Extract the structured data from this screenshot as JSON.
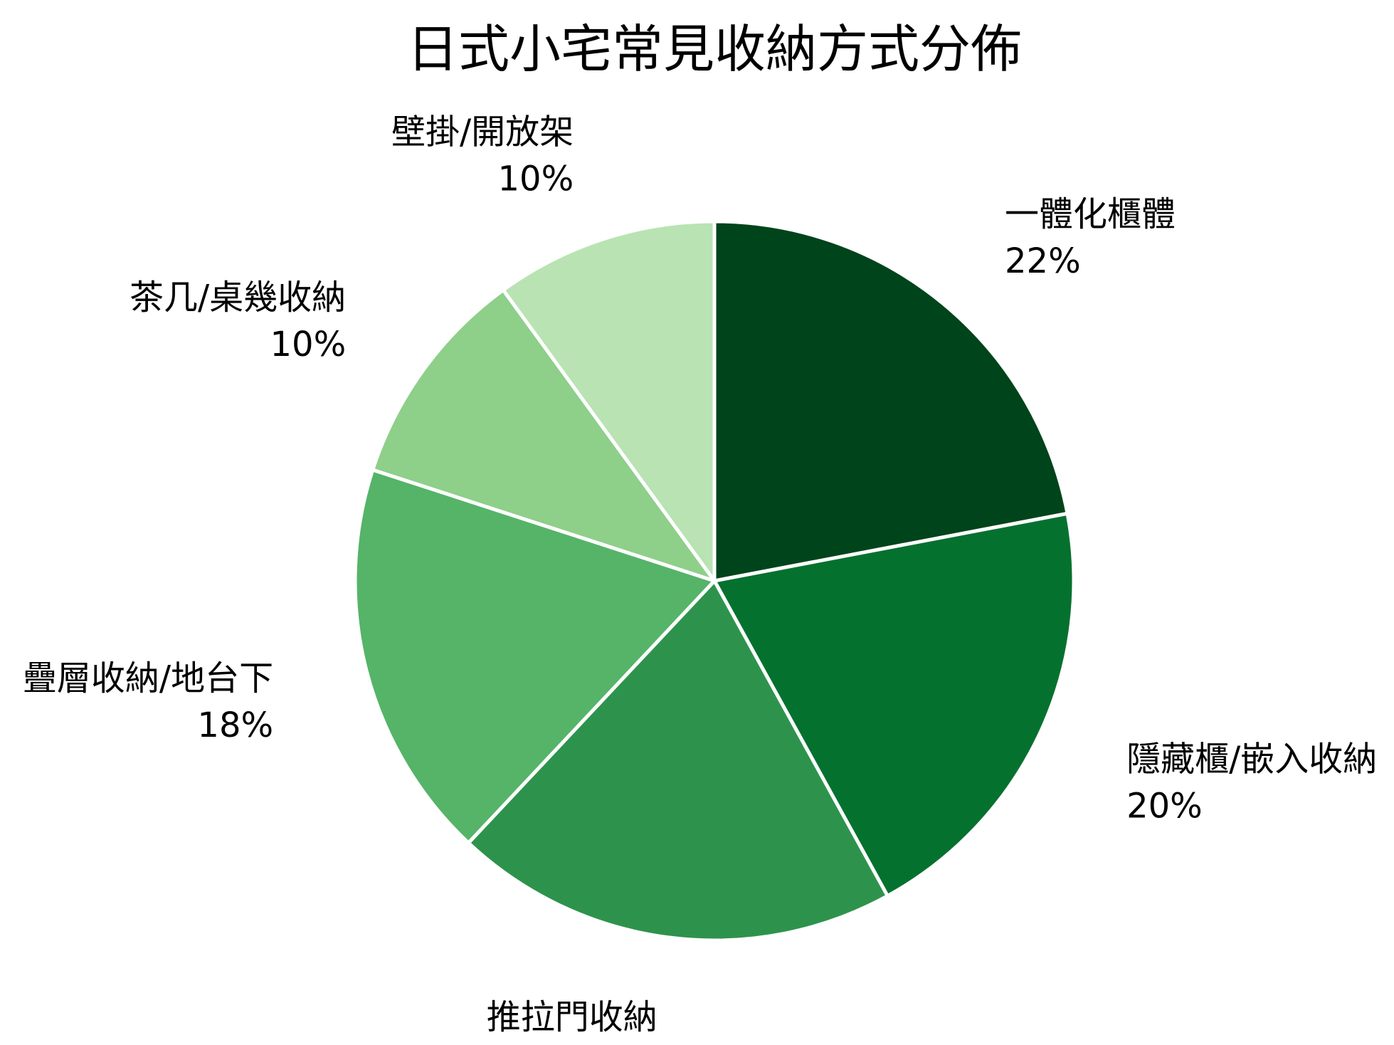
{
  "chart_data": {
    "type": "pie",
    "title": "日式小宅常見收納方式分佈",
    "slices": [
      {
        "label": "一體化櫃體",
        "value": 22,
        "value_label": "22%",
        "color": "#00441b"
      },
      {
        "label": "隱藏櫃/嵌入收納",
        "value": 20,
        "value_label": "20%",
        "color": "#05712f"
      },
      {
        "label": "推拉門收納",
        "value": 20,
        "value_label": "20%",
        "color": "#2d934c"
      },
      {
        "label": "疊層收納/地台下",
        "value": 18,
        "value_label": "18%",
        "color": "#55b468"
      },
      {
        "label": "茶几/桌幾收納",
        "value": 10,
        "value_label": "10%",
        "color": "#8ecf8a"
      },
      {
        "label": "壁掛/開放架",
        "value": 10,
        "value_label": "10%",
        "color": "#b9e3b3"
      }
    ],
    "start_angle_deg": 90,
    "direction": "clockwise",
    "legend": "none"
  }
}
